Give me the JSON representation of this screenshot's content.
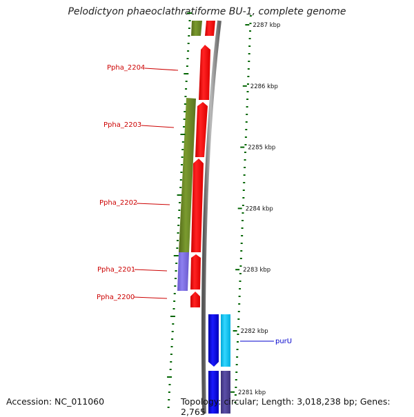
{
  "title": "Pelodictyon phaeoclathratiforme BU-1, complete genome",
  "footer": {
    "accession": "Accession: NC_011060",
    "summary": "Topology: circular; Length: 3,018,238 bp; Genes: 2,765"
  },
  "scale_ticks": [
    {
      "label": "2287 kbp",
      "kbp": 2287
    },
    {
      "label": "2286 kbp",
      "kbp": 2286
    },
    {
      "label": "2285 kbp",
      "kbp": 2285
    },
    {
      "label": "2284 kbp",
      "kbp": 2284
    },
    {
      "label": "2283 kbp",
      "kbp": 2283
    },
    {
      "label": "2282 kbp",
      "kbp": 2282
    },
    {
      "label": "2281 kbp",
      "kbp": 2281
    }
  ],
  "left_gene_labels": [
    {
      "text": "Ppha_2204"
    },
    {
      "text": "Ppha_2203"
    },
    {
      "text": "Ppha_2202"
    },
    {
      "text": "Ppha_2201"
    },
    {
      "text": "Ppha_2200"
    }
  ],
  "right_gene_labels": [
    {
      "text": "purU"
    }
  ],
  "colors": {
    "cds_red": "#ff0000",
    "cog_green": "#6b8e23",
    "cog_purple": "#7b68ee",
    "gene_blue": "#0000ee",
    "gene_cyan": "#00c8f0",
    "gene_navy": "#483d8b",
    "label_red": "#cc0000",
    "label_blue": "#0000cc",
    "backbone": "#888888",
    "tick_green": "#006400"
  }
}
